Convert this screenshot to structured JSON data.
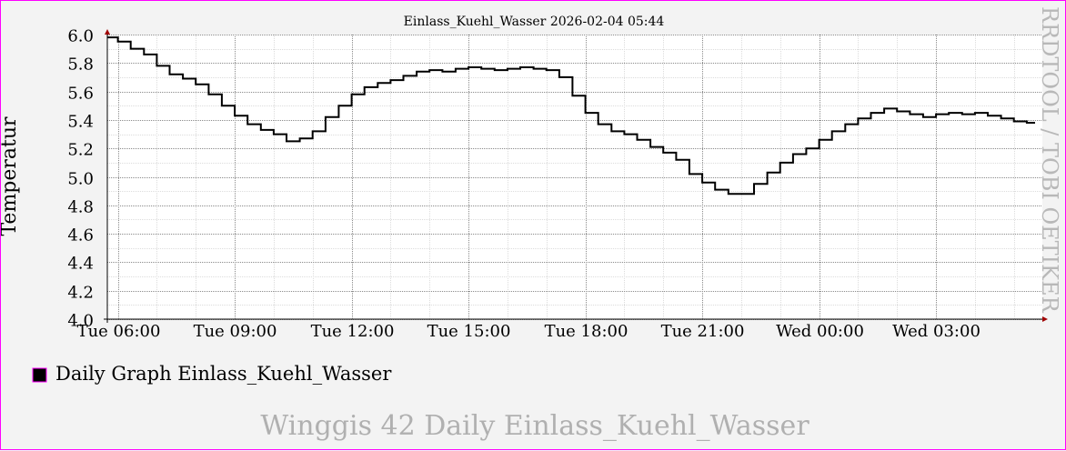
{
  "chart_data": {
    "type": "line",
    "title": "Einlass_Kuehl_Wasser 2026-02-04 05:44",
    "ylabel": "Temperatur",
    "ylim": [
      4.0,
      6.0
    ],
    "y_ticks": [
      "4.0",
      "4.2",
      "4.4",
      "4.6",
      "4.8",
      "5.0",
      "5.2",
      "5.4",
      "5.6",
      "5.8",
      "6.0"
    ],
    "x_tick_labels": [
      "Tue 06:00",
      "Tue 09:00",
      "Tue 12:00",
      "Tue 15:00",
      "Tue 18:00",
      "Tue 21:00",
      "Wed 00:00",
      "Wed 03:00"
    ],
    "x_range_hours": [
      5.73,
      29.73
    ],
    "grid": true,
    "series": [
      {
        "name": "Daily Graph Einlass_Kuehl_Wasser",
        "color": "#000000",
        "x_hours": [
          5.73,
          6.0,
          6.33,
          6.67,
          7.0,
          7.33,
          7.67,
          8.0,
          8.33,
          8.67,
          9.0,
          9.33,
          9.67,
          10.0,
          10.33,
          10.67,
          11.0,
          11.33,
          11.67,
          12.0,
          12.33,
          12.67,
          13.0,
          13.33,
          13.67,
          14.0,
          14.33,
          14.67,
          15.0,
          15.33,
          15.67,
          16.0,
          16.33,
          16.67,
          17.0,
          17.33,
          17.67,
          18.0,
          18.33,
          18.67,
          19.0,
          19.33,
          19.67,
          20.0,
          20.33,
          20.67,
          21.0,
          21.33,
          21.67,
          22.0,
          22.33,
          22.67,
          23.0,
          23.33,
          23.67,
          24.0,
          24.33,
          24.67,
          25.0,
          25.33,
          25.67,
          26.0,
          26.33,
          26.67,
          27.0,
          27.33,
          27.67,
          28.0,
          28.33,
          28.67,
          29.0,
          29.33
        ],
        "values": [
          5.98,
          5.95,
          5.9,
          5.86,
          5.78,
          5.72,
          5.69,
          5.65,
          5.58,
          5.5,
          5.43,
          5.37,
          5.33,
          5.3,
          5.25,
          5.27,
          5.32,
          5.42,
          5.5,
          5.58,
          5.63,
          5.66,
          5.68,
          5.71,
          5.74,
          5.75,
          5.74,
          5.76,
          5.77,
          5.76,
          5.75,
          5.76,
          5.77,
          5.76,
          5.75,
          5.7,
          5.57,
          5.45,
          5.37,
          5.32,
          5.3,
          5.26,
          5.21,
          5.17,
          5.12,
          5.02,
          4.96,
          4.91,
          4.88,
          4.88,
          4.95,
          5.03,
          5.1,
          5.16,
          5.2,
          5.26,
          5.32,
          5.37,
          5.41,
          5.45,
          5.48,
          5.46,
          5.44,
          5.42,
          5.44,
          5.45,
          5.44,
          5.45,
          5.43,
          5.41,
          5.39,
          5.38
        ]
      }
    ],
    "legend_position": "bottom-left",
    "watermark": "RRDTOOL / TOBI OETIKER",
    "footer": "Winggis 42 Daily Einlass_Kuehl_Wasser"
  }
}
